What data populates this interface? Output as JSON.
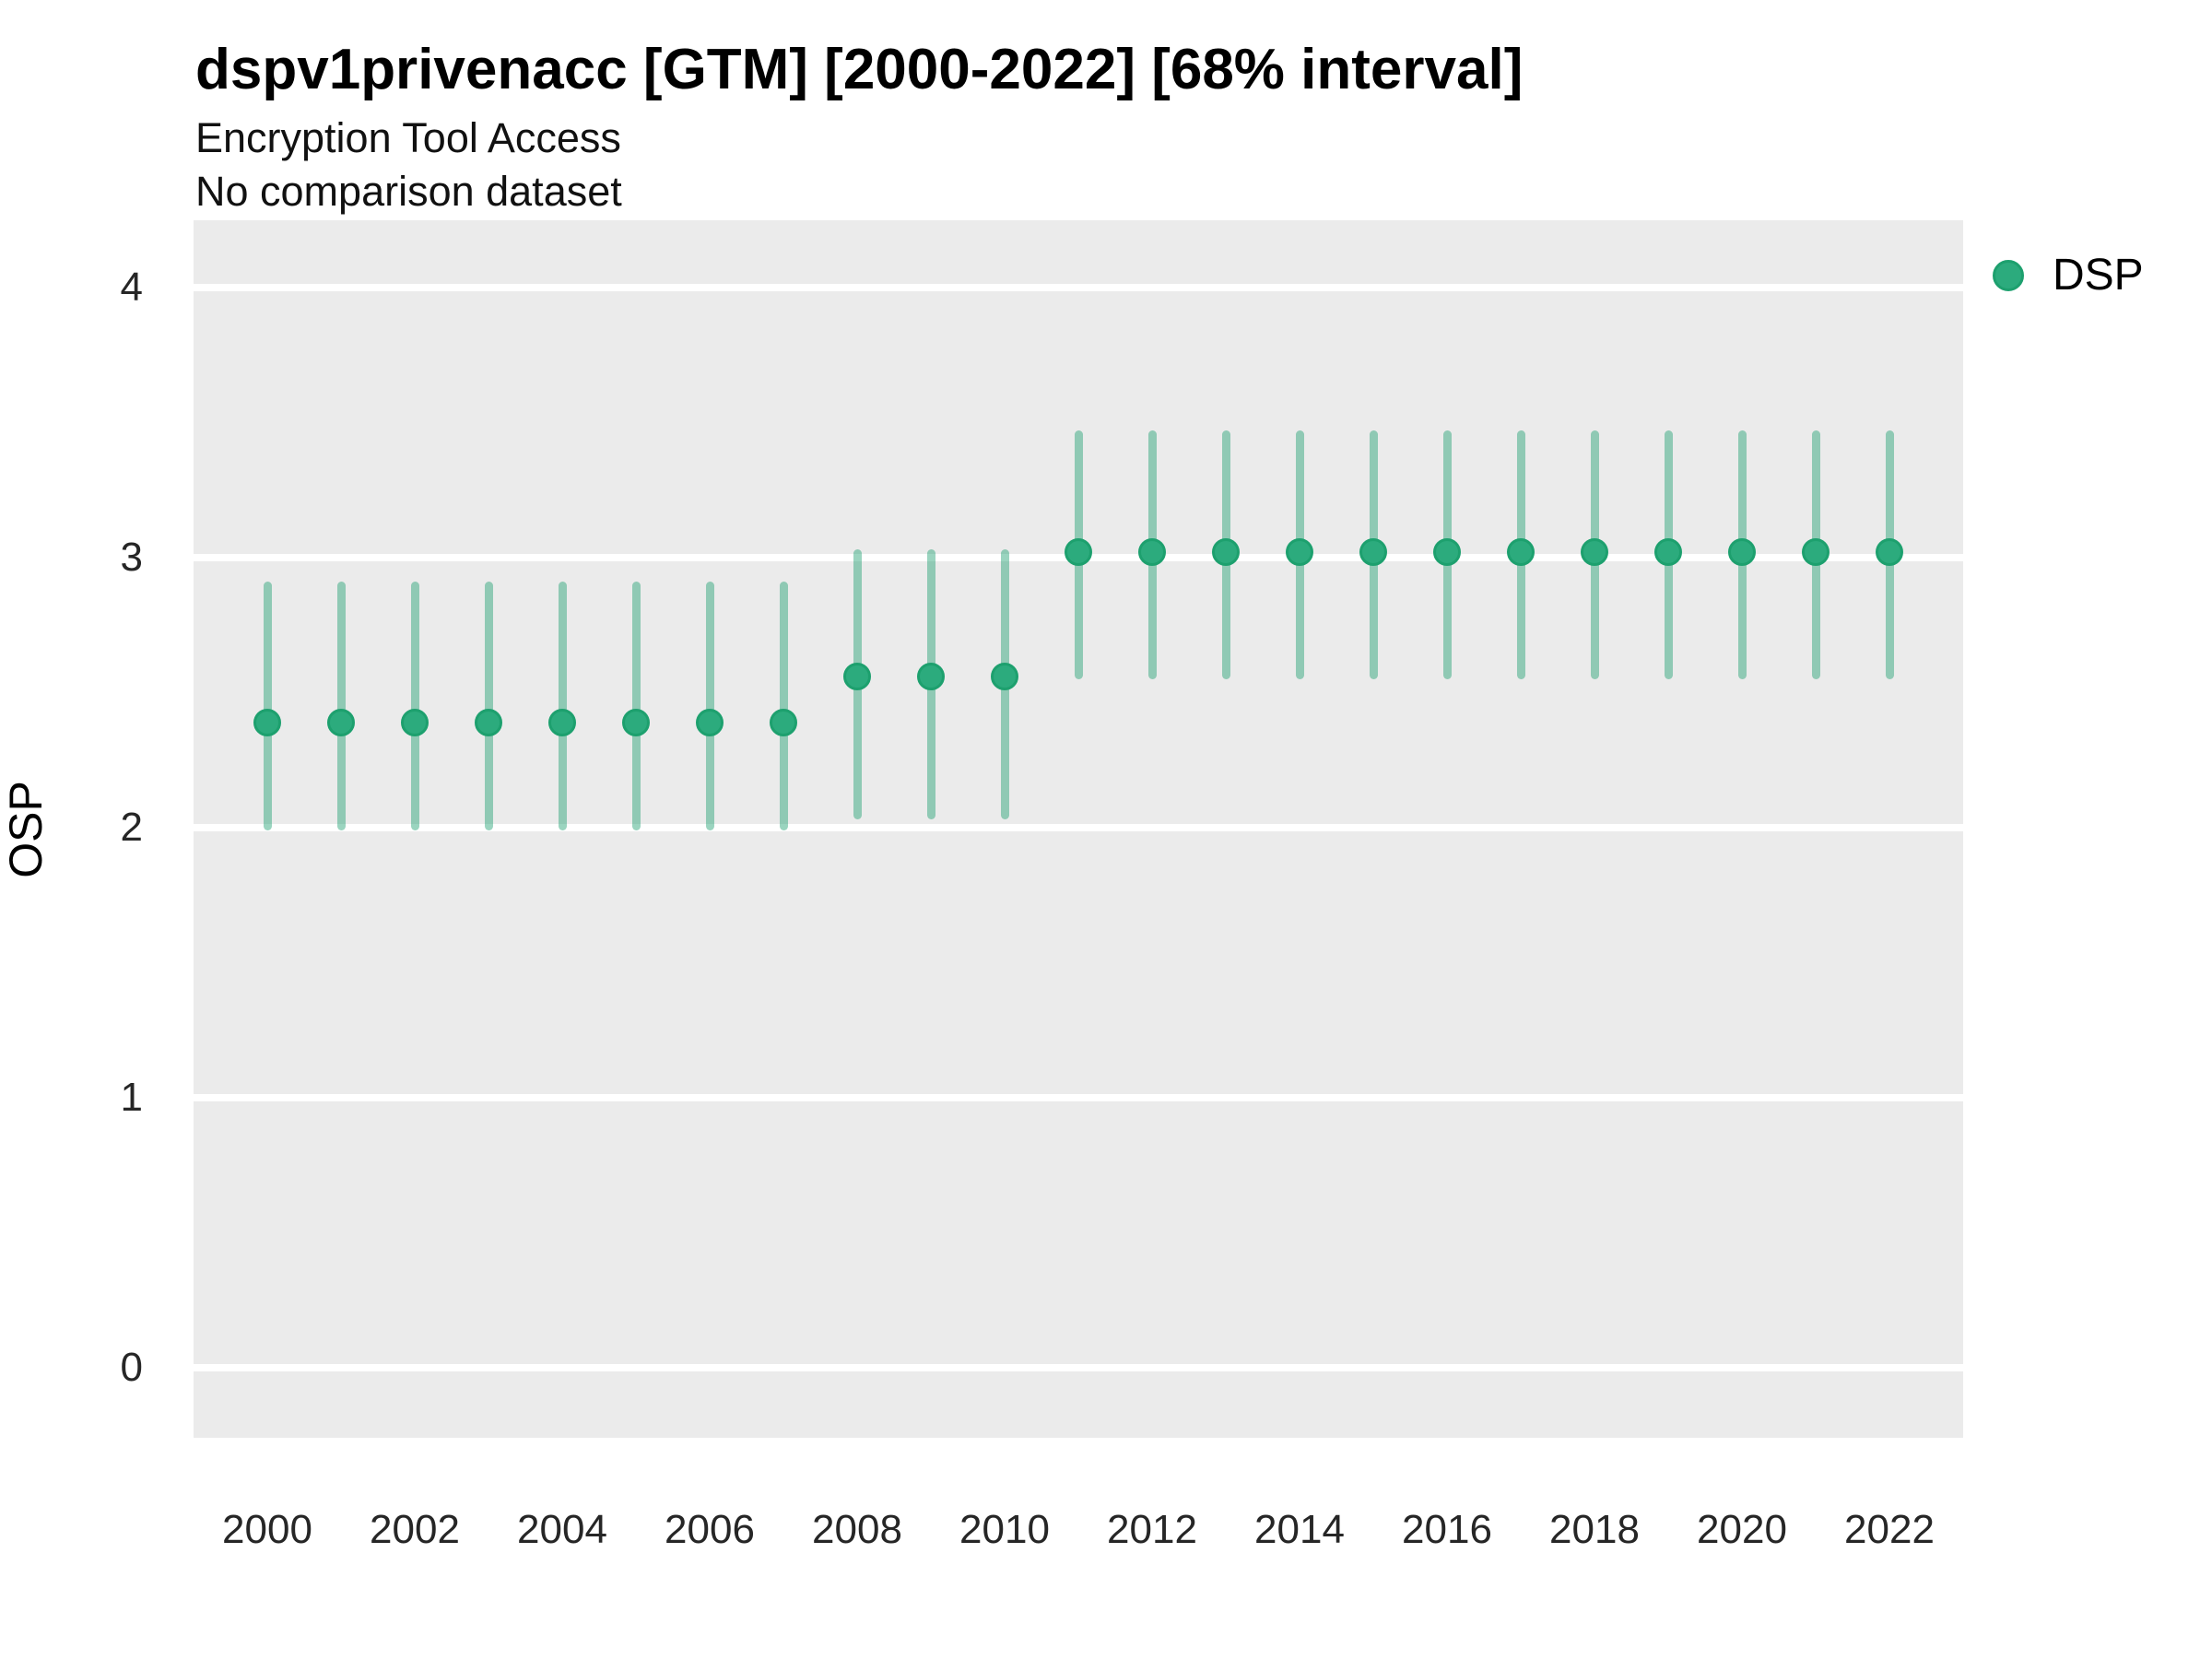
{
  "header": {
    "title": "dspv1privenacc [GTM] [2000-2022] [68% interval]",
    "subtitle": "Encryption Tool Access",
    "note": "No comparison dataset"
  },
  "legend": {
    "position": "right",
    "items": [
      {
        "label": "DSP",
        "color": "#2CAB7D",
        "border_color": "#1DA06E"
      }
    ]
  },
  "axes": {
    "y": {
      "label": "OSP",
      "ticks": [
        0,
        1,
        2,
        3,
        4
      ]
    },
    "x": {
      "ticks": [
        2000,
        2002,
        2004,
        2006,
        2008,
        2010,
        2012,
        2014,
        2016,
        2018,
        2020,
        2022
      ]
    }
  },
  "colors": {
    "point_fill": "#2CAB7D",
    "point_border": "#1DA06E",
    "interval_bar": "rgba(32,160,112,0.45)",
    "panel_background": "#EBEBEB",
    "gridline": "#FFFFFF"
  },
  "chart_data": {
    "type": "scatter",
    "subtype": "pointrange",
    "title": "dspv1privenacc [GTM] [2000-2022] [68% interval]",
    "subtitle": "Encryption Tool Access",
    "note": "No comparison dataset",
    "xlabel": "",
    "ylabel": "OSP",
    "xlim": [
      1999,
      2023
    ],
    "ylim": [
      -0.26,
      4.25
    ],
    "grid": "horizontal-major-only",
    "legend_position": "right",
    "interval_level": "68%",
    "series": [
      {
        "name": "DSP",
        "points": [
          {
            "year": 2000,
            "value": 2.39,
            "lower": 1.99,
            "upper": 2.91
          },
          {
            "year": 2001,
            "value": 2.39,
            "lower": 1.99,
            "upper": 2.91
          },
          {
            "year": 2002,
            "value": 2.39,
            "lower": 1.99,
            "upper": 2.91
          },
          {
            "year": 2003,
            "value": 2.39,
            "lower": 1.99,
            "upper": 2.91
          },
          {
            "year": 2004,
            "value": 2.39,
            "lower": 1.99,
            "upper": 2.91
          },
          {
            "year": 2005,
            "value": 2.39,
            "lower": 1.99,
            "upper": 2.91
          },
          {
            "year": 2006,
            "value": 2.39,
            "lower": 1.99,
            "upper": 2.91
          },
          {
            "year": 2007,
            "value": 2.39,
            "lower": 1.99,
            "upper": 2.91
          },
          {
            "year": 2008,
            "value": 2.56,
            "lower": 2.03,
            "upper": 3.03
          },
          {
            "year": 2009,
            "value": 2.56,
            "lower": 2.03,
            "upper": 3.03
          },
          {
            "year": 2010,
            "value": 2.56,
            "lower": 2.03,
            "upper": 3.03
          },
          {
            "year": 2011,
            "value": 3.02,
            "lower": 2.55,
            "upper": 3.47
          },
          {
            "year": 2012,
            "value": 3.02,
            "lower": 2.55,
            "upper": 3.47
          },
          {
            "year": 2013,
            "value": 3.02,
            "lower": 2.55,
            "upper": 3.47
          },
          {
            "year": 2014,
            "value": 3.02,
            "lower": 2.55,
            "upper": 3.47
          },
          {
            "year": 2015,
            "value": 3.02,
            "lower": 2.55,
            "upper": 3.47
          },
          {
            "year": 2016,
            "value": 3.02,
            "lower": 2.55,
            "upper": 3.47
          },
          {
            "year": 2017,
            "value": 3.02,
            "lower": 2.55,
            "upper": 3.47
          },
          {
            "year": 2018,
            "value": 3.02,
            "lower": 2.55,
            "upper": 3.47
          },
          {
            "year": 2019,
            "value": 3.02,
            "lower": 2.55,
            "upper": 3.47
          },
          {
            "year": 2020,
            "value": 3.02,
            "lower": 2.55,
            "upper": 3.47
          },
          {
            "year": 2021,
            "value": 3.02,
            "lower": 2.55,
            "upper": 3.47
          },
          {
            "year": 2022,
            "value": 3.02,
            "lower": 2.55,
            "upper": 3.47
          }
        ]
      }
    ]
  }
}
